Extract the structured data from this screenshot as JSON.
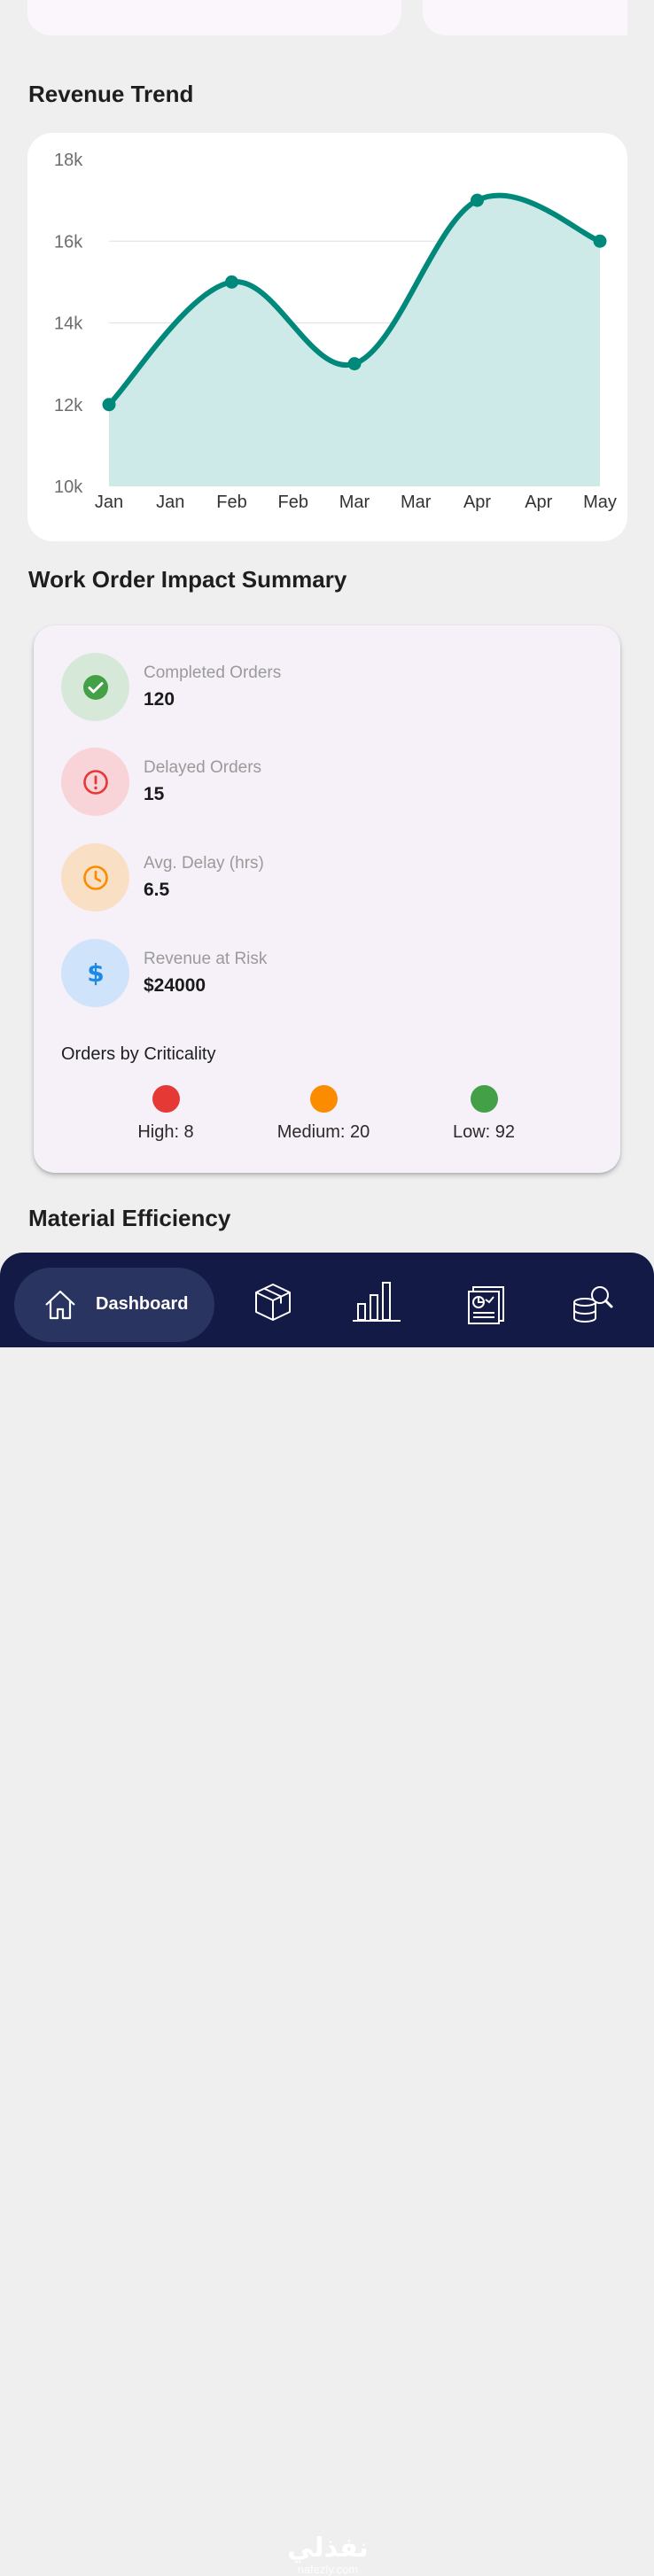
{
  "colors": {
    "accent": "#00897b",
    "chart_fill": "#cdeae8",
    "completed": "#43a047",
    "delayed": "#e53935",
    "avg_delay": "#fb8c00",
    "revenue_risk": "#1e88e5",
    "nav_bg": "#121a45"
  },
  "revenue_trend": {
    "title": "Revenue Trend"
  },
  "chart_data": {
    "type": "area",
    "title": "",
    "xlabel": "",
    "ylabel": "",
    "x_tick_labels": [
      "Jan",
      "Jan",
      "Feb",
      "Feb",
      "Mar",
      "Mar",
      "Apr",
      "Apr",
      "May"
    ],
    "y_tick_labels": [
      "18k",
      "16k",
      "14k",
      "12k",
      "10k"
    ],
    "ylim": [
      10000,
      18000
    ],
    "grid": "horizontal",
    "series": [
      {
        "values": [
          12000,
          15000,
          13000,
          17000,
          16000
        ],
        "x_index": [
          0,
          2,
          4,
          6,
          8
        ]
      }
    ]
  },
  "work_order": {
    "title": "Work Order Impact Summary",
    "metrics": [
      {
        "label": "Completed Orders",
        "value": "120",
        "icon": "check-circle-icon"
      },
      {
        "label": "Delayed Orders",
        "value": "15",
        "icon": "alert-circle-icon"
      },
      {
        "label": "Avg. Delay (hrs)",
        "value": "6.5",
        "icon": "clock-icon"
      },
      {
        "label": "Revenue at Risk",
        "value": "$24000",
        "icon": "dollar-icon"
      }
    ],
    "criticality": {
      "title": "Orders by Criticality",
      "items": [
        {
          "label": "High: 8",
          "color": "#e53935"
        },
        {
          "label": "Medium: 20",
          "color": "#fb8c00"
        },
        {
          "label": "Low: 92",
          "color": "#43a047"
        }
      ]
    }
  },
  "material_efficiency": {
    "title": "Material Efficiency"
  },
  "nav": {
    "active_label": "Dashboard",
    "items": [
      "home-icon",
      "inventory-box-icon",
      "bar-chart-icon",
      "report-icon",
      "database-search-icon"
    ]
  },
  "watermark": {
    "arabic": "نفذلي",
    "latin": "nafezly.com"
  }
}
